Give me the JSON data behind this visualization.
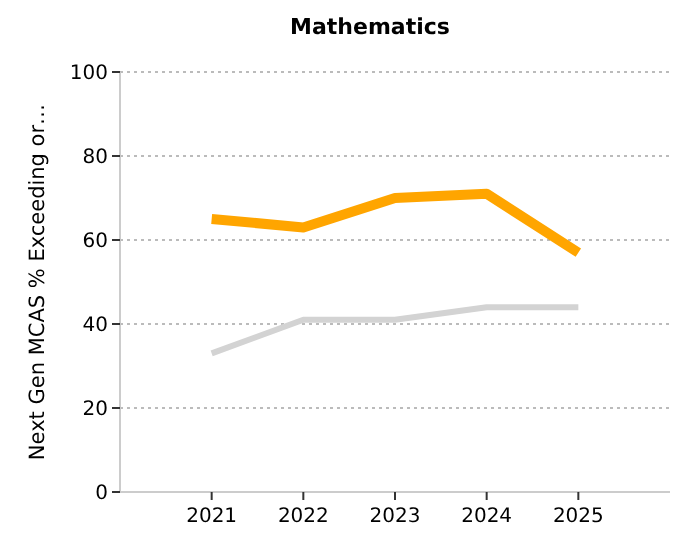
{
  "chart_data": {
    "type": "line",
    "title": "Mathematics",
    "ylabel": "Next Gen MCAS % Exceeding or…",
    "categories": [
      "2021",
      "2022",
      "2023",
      "2024",
      "2025"
    ],
    "series": [
      {
        "color": "#ffa500",
        "values": [
          65,
          63,
          70,
          71,
          57
        ]
      },
      {
        "color": "#d3d3d3",
        "values": [
          33,
          41,
          41,
          44,
          44
        ]
      }
    ],
    "ylim": [
      0,
      100
    ],
    "yticks": [
      0,
      20,
      40,
      60,
      80,
      100
    ],
    "grid": "y",
    "marker": "none",
    "line_style": "solid"
  }
}
